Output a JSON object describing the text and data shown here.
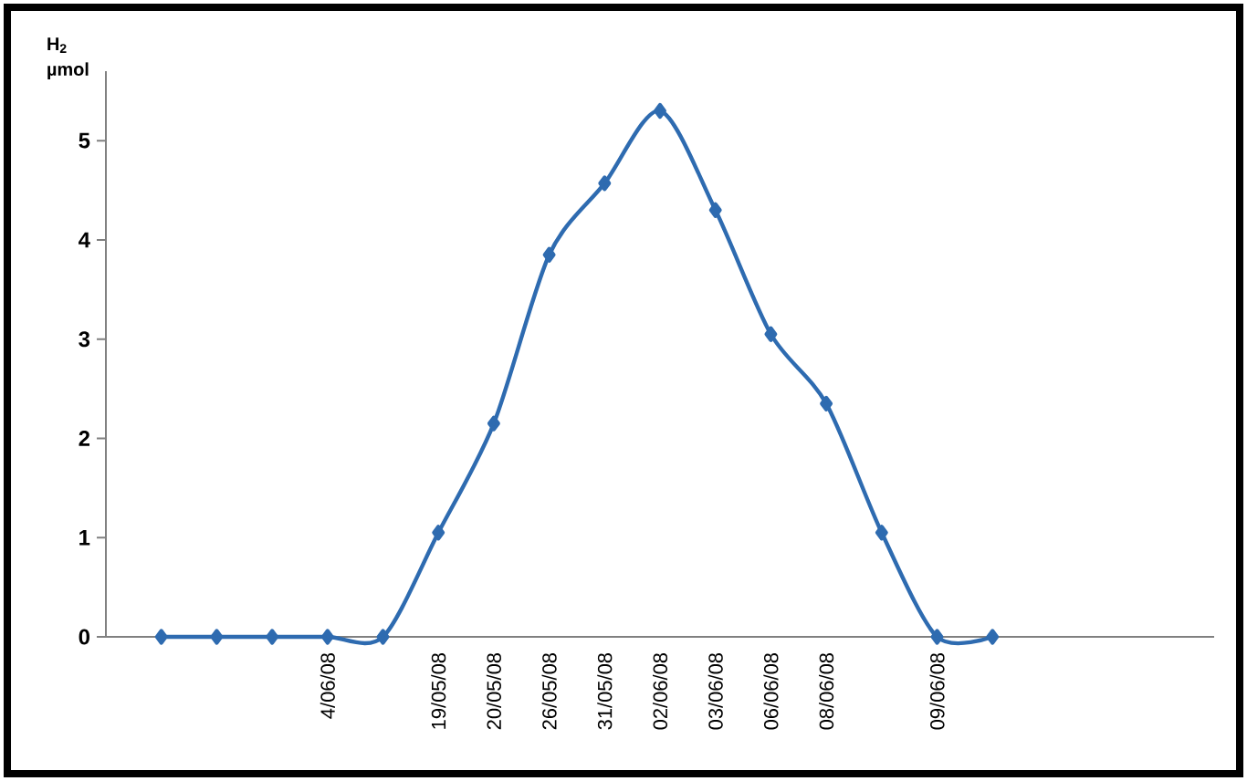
{
  "chart_data": {
    "type": "line",
    "ylabel": "H$_{2}$ µmol",
    "categories": [
      null,
      null,
      null,
      "4/06/08",
      null,
      "19/05/08",
      "20/05/08",
      "26/05/08",
      "31/05/08",
      "02/06/08",
      "03/06/08",
      "06/06/08",
      "08/06/08",
      null,
      "09/06/08",
      null,
      null,
      null,
      null
    ],
    "series": [
      {
        "color": "#2e6bb0",
        "values": [
          0,
          0,
          0,
          0,
          0,
          1.05,
          2.15,
          3.85,
          4.57,
          5.3,
          4.3,
          3.05,
          2.35,
          1.05,
          0,
          0,
          null,
          null,
          null
        ]
      }
    ],
    "ylim": [
      0,
      5.7
    ],
    "yticks": [
      0,
      1,
      2,
      3,
      4,
      5
    ],
    "marker": "diamond",
    "line_style": "solid"
  }
}
